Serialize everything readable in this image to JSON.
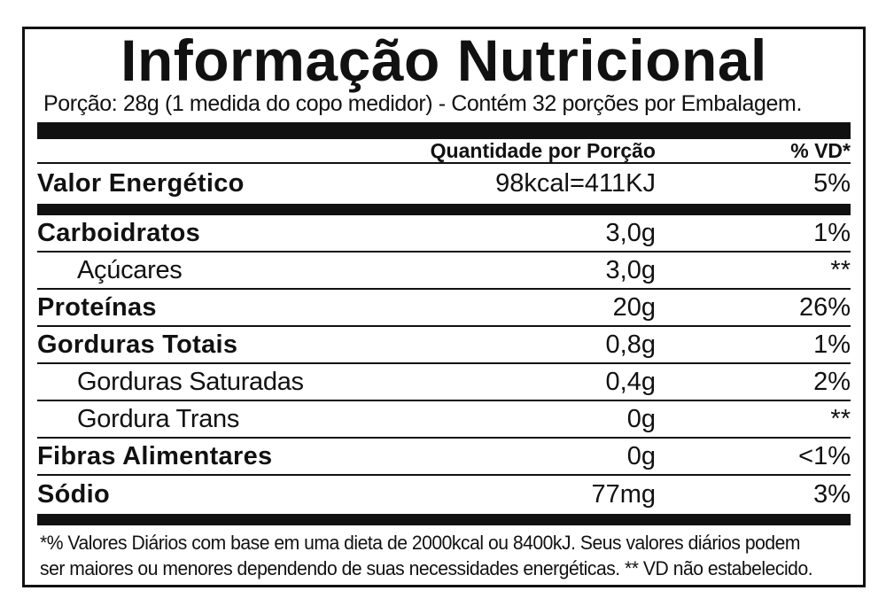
{
  "label": {
    "title": "Informação Nutricional",
    "serving_info": "Porção: 28g (1 medida do copo medidor) - Contém 32 porções por Embalagem.",
    "header": {
      "quantity": "Quantidade por Porção",
      "daily_value": "% VD*"
    },
    "rows": [
      {
        "name": "Valor Energético",
        "quantity": "98kcal=411KJ",
        "daily_value": "5%"
      },
      {
        "name": "Carboidratos",
        "quantity": "3,0g",
        "daily_value": "1%"
      },
      {
        "name": "Açúcares",
        "quantity": "3,0g",
        "daily_value": "**"
      },
      {
        "name": "Proteínas",
        "quantity": "20g",
        "daily_value": "26%"
      },
      {
        "name": "Gorduras Totais",
        "quantity": "0,8g",
        "daily_value": "1%"
      },
      {
        "name": "Gorduras Saturadas",
        "quantity": "0,4g",
        "daily_value": "2%"
      },
      {
        "name": "Gordura Trans",
        "quantity": "0g",
        "daily_value": "**"
      },
      {
        "name": "Fibras Alimentares",
        "quantity": "0g",
        "daily_value": "<1%"
      },
      {
        "name": "Sódio",
        "quantity": "77mg",
        "daily_value": "3%"
      }
    ],
    "footnote_line1": "*% Valores Diários com base em uma dieta de 2000kcal ou 8400kJ. Seus valores diários podem",
    "footnote_line2": "ser maiores ou menores dependendo de suas necessidades energéticas.  ** VD não estabelecido.",
    "colors": {
      "ink": "#111111",
      "background": "#ffffff"
    }
  }
}
